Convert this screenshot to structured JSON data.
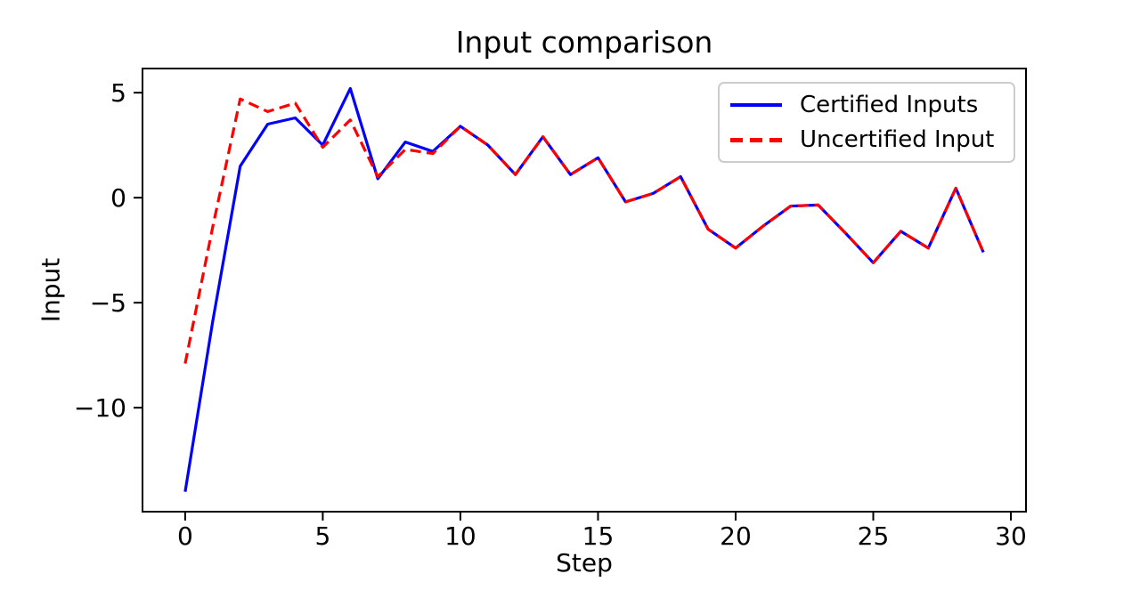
{
  "chart_data": {
    "type": "line",
    "title": "Input comparison",
    "xlabel": "Step",
    "ylabel": "Input",
    "x": [
      0,
      1,
      2,
      3,
      4,
      5,
      6,
      7,
      8,
      9,
      10,
      11,
      12,
      13,
      14,
      15,
      16,
      17,
      18,
      19,
      20,
      21,
      22,
      23,
      24,
      25,
      26,
      27,
      28,
      29
    ],
    "series": [
      {
        "name": "Certified Inputs",
        "color": "#0000ff",
        "style": "solid",
        "values": [
          -14.0,
          -5.9,
          1.5,
          3.5,
          3.8,
          2.5,
          5.2,
          0.9,
          2.65,
          2.2,
          3.4,
          2.5,
          1.1,
          2.9,
          1.1,
          1.9,
          -0.2,
          0.2,
          1.0,
          -1.5,
          -2.4,
          -1.35,
          -0.4,
          -0.35,
          -1.7,
          -3.1,
          -1.6,
          -2.4,
          0.45,
          -2.6
        ]
      },
      {
        "name": "Uncertified Input",
        "color": "#ff0000",
        "style": "dashed",
        "values": [
          -7.9,
          -1.4,
          4.7,
          4.1,
          4.5,
          2.4,
          3.7,
          1.0,
          2.3,
          2.1,
          3.4,
          2.5,
          1.1,
          2.9,
          1.1,
          1.9,
          -0.2,
          0.2,
          1.0,
          -1.5,
          -2.4,
          -1.35,
          -0.4,
          -0.35,
          -1.7,
          -3.1,
          -1.6,
          -2.4,
          0.45,
          -2.6
        ]
      }
    ],
    "xlim": [
      -1.55,
      30.55
    ],
    "ylim": [
      -14.95,
      6.15
    ],
    "xticks": [
      0,
      5,
      10,
      15,
      20,
      25,
      30
    ],
    "xtick_labels": [
      "0",
      "5",
      "10",
      "15",
      "20",
      "25",
      "30"
    ],
    "yticks": [
      5,
      0,
      -5,
      -10
    ],
    "ytick_labels": [
      "5",
      "0",
      "−5",
      "−10"
    ],
    "grid": false,
    "legend_position": "upper right",
    "axis_color": "#000000",
    "tick_label_color": "#000000",
    "legend_border_color": "#cccccc",
    "background": "#ffffff"
  }
}
